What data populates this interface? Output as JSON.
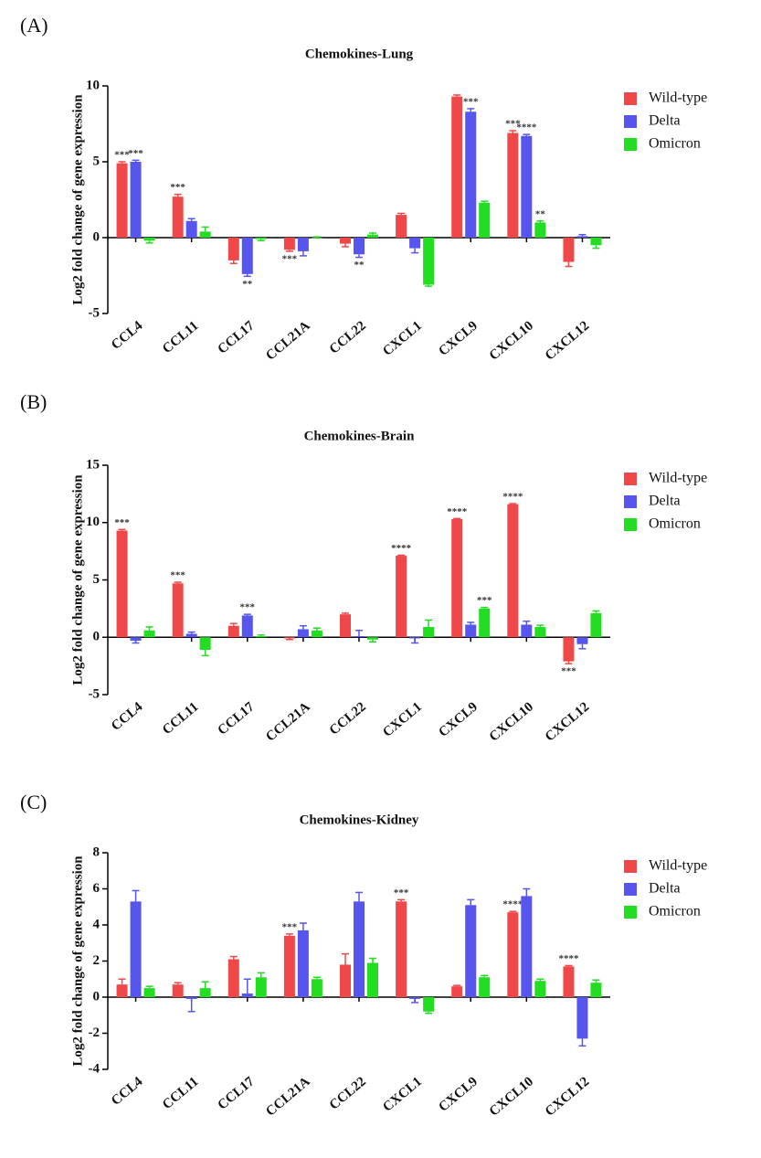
{
  "chart_data": [
    {
      "type": "bar",
      "panel_label": "(A)",
      "title": "Chemokines-Lung",
      "y_label": "Log2 fold change of gene expression",
      "categories": [
        "CCL4",
        "CCL11",
        "CCL17",
        "CCL21A",
        "CCL22",
        "CXCL1",
        "CXCL9",
        "CXCL10",
        "CXCL12"
      ],
      "ylim": [
        -5,
        10
      ],
      "yticks": [
        -5,
        0,
        5,
        10
      ],
      "series": [
        {
          "name": "Wild-type",
          "color": "#f04848",
          "values": [
            4.9,
            2.7,
            -1.5,
            -0.8,
            -0.4,
            1.5,
            9.3,
            6.9,
            -1.6
          ],
          "errors": [
            0.1,
            0.15,
            0.2,
            0.1,
            0.2,
            0.1,
            0.1,
            0.15,
            0.3
          ],
          "stars": [
            "***",
            "***",
            null,
            "***",
            null,
            null,
            null,
            "***",
            null
          ]
        },
        {
          "name": "Delta",
          "color": "#5656ee",
          "values": [
            5.0,
            1.1,
            -2.4,
            -0.9,
            -1.1,
            -0.7,
            8.3,
            6.7,
            0.1
          ],
          "errors": [
            0.1,
            0.15,
            0.15,
            0.3,
            0.2,
            0.3,
            0.2,
            0.1,
            0.1
          ],
          "stars": [
            "***",
            null,
            "**",
            null,
            "**",
            null,
            "***",
            "****",
            null
          ]
        },
        {
          "name": "Omicron",
          "color": "#22dd22",
          "values": [
            -0.2,
            0.4,
            -0.1,
            0.0,
            0.2,
            -3.1,
            2.3,
            1.0,
            -0.5
          ],
          "errors": [
            0.15,
            0.3,
            0.1,
            0.05,
            0.1,
            0.1,
            0.1,
            0.1,
            0.2
          ],
          "stars": [
            null,
            null,
            null,
            null,
            null,
            null,
            null,
            "**",
            null
          ]
        }
      ]
    },
    {
      "type": "bar",
      "panel_label": "(B)",
      "title": "Chemokines-Brain",
      "y_label": "Log2 fold change of gene expression",
      "categories": [
        "CCL4",
        "CCL11",
        "CCL17",
        "CCL21A",
        "CCL22",
        "CXCL1",
        "CXCL9",
        "CXCL10",
        "CXCL12"
      ],
      "ylim": [
        -5,
        15
      ],
      "yticks": [
        -5,
        0,
        5,
        10,
        15
      ],
      "series": [
        {
          "name": "Wild-type",
          "color": "#f04848",
          "values": [
            9.3,
            4.7,
            1.0,
            -0.1,
            2.0,
            7.1,
            10.3,
            11.6,
            -2.1
          ],
          "errors": [
            0.1,
            0.1,
            0.2,
            0.1,
            0.1,
            0.05,
            0.05,
            0.05,
            0.2
          ],
          "stars": [
            "***",
            "***",
            null,
            null,
            null,
            "****",
            "****",
            "****",
            "***"
          ]
        },
        {
          "name": "Delta",
          "color": "#5656ee",
          "values": [
            -0.3,
            0.3,
            1.9,
            0.7,
            0.1,
            -0.1,
            1.1,
            1.1,
            -0.6
          ],
          "errors": [
            0.2,
            0.15,
            0.1,
            0.3,
            0.5,
            0.4,
            0.2,
            0.3,
            0.4
          ],
          "stars": [
            null,
            null,
            "***",
            null,
            null,
            null,
            null,
            null,
            null
          ]
        },
        {
          "name": "Omicron",
          "color": "#22dd22",
          "values": [
            0.6,
            -1.1,
            0.1,
            0.6,
            -0.2,
            0.9,
            2.5,
            0.9,
            2.1
          ],
          "errors": [
            0.3,
            0.5,
            0.1,
            0.2,
            0.2,
            0.6,
            0.1,
            0.15,
            0.2
          ],
          "stars": [
            null,
            null,
            null,
            null,
            null,
            null,
            "***",
            null,
            null
          ]
        }
      ]
    },
    {
      "type": "bar",
      "panel_label": "(C)",
      "title": "Chemokines-Kidney",
      "y_label": "Log2 fold change of gene expression",
      "categories": [
        "CCL4",
        "CCL11",
        "CCL17",
        "CCL21A",
        "CCL22",
        "CXCL1",
        "CXCL9",
        "CXCL10",
        "CXCL12"
      ],
      "ylim": [
        -4,
        8
      ],
      "yticks": [
        -4,
        -2,
        0,
        2,
        4,
        6,
        8
      ],
      "series": [
        {
          "name": "Wild-type",
          "color": "#f04848",
          "values": [
            0.7,
            0.7,
            2.1,
            3.4,
            1.8,
            5.3,
            0.6,
            4.7,
            1.7
          ],
          "errors": [
            0.3,
            0.1,
            0.15,
            0.1,
            0.6,
            0.1,
            0.05,
            0.05,
            0.05
          ],
          "stars": [
            null,
            null,
            null,
            "***",
            null,
            "***",
            null,
            "****",
            "****"
          ]
        },
        {
          "name": "Delta",
          "color": "#5656ee",
          "values": [
            5.3,
            -0.1,
            0.2,
            3.7,
            5.3,
            -0.1,
            5.1,
            5.6,
            -2.3
          ],
          "errors": [
            0.6,
            0.7,
            0.8,
            0.4,
            0.5,
            0.2,
            0.3,
            0.4,
            0.4
          ],
          "stars": [
            null,
            null,
            null,
            null,
            null,
            null,
            null,
            null,
            null
          ]
        },
        {
          "name": "Omicron",
          "color": "#22dd22",
          "values": [
            0.5,
            0.5,
            1.1,
            1.0,
            1.9,
            -0.8,
            1.1,
            0.9,
            0.8
          ],
          "errors": [
            0.1,
            0.35,
            0.25,
            0.1,
            0.25,
            0.1,
            0.1,
            0.1,
            0.15
          ],
          "stars": [
            null,
            null,
            null,
            null,
            null,
            null,
            null,
            null,
            null
          ]
        }
      ]
    }
  ]
}
